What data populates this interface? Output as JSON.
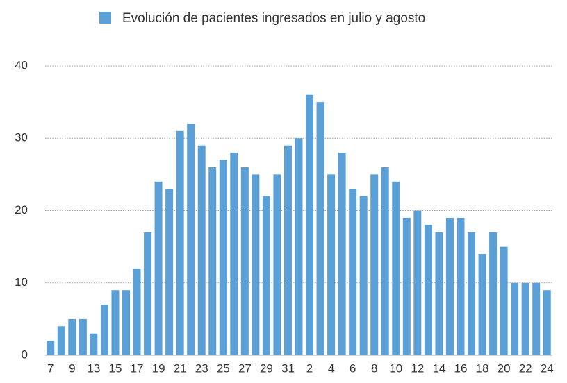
{
  "chart_data": {
    "type": "bar",
    "legend": "Evolución de pacientes ingresados en julio y agosto",
    "categories": [
      "7",
      null,
      "9",
      null,
      "13",
      null,
      "15",
      null,
      "17",
      null,
      "19",
      null,
      "21",
      null,
      "23",
      null,
      "25",
      null,
      "27",
      null,
      "29",
      null,
      "31",
      null,
      "2",
      null,
      "4",
      null,
      "6",
      null,
      "8",
      null,
      "10",
      null,
      "12",
      null,
      "14",
      null,
      "16",
      null,
      "18",
      null,
      "20",
      null,
      "22",
      null,
      "24"
    ],
    "values": [
      2,
      4,
      5,
      5,
      3,
      7,
      9,
      9,
      12,
      17,
      24,
      23,
      31,
      32,
      29,
      26,
      27,
      28,
      26,
      25,
      22,
      25,
      29,
      30,
      36,
      35,
      25,
      28,
      23,
      22,
      25,
      26,
      24,
      19,
      20,
      18,
      17,
      19,
      19,
      17,
      14,
      17,
      15,
      10,
      10,
      10,
      9
    ],
    "color": "#5b9fd7",
    "ylim": [
      0,
      40
    ],
    "yticks": [
      0,
      10,
      20,
      30,
      40
    ],
    "grid": true,
    "legend_position": "top"
  }
}
